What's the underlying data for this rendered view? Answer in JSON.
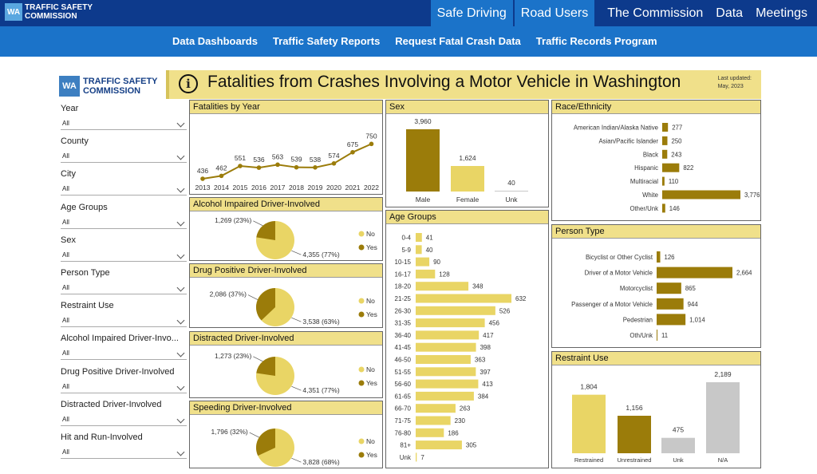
{
  "site": {
    "logo_mark": "WA",
    "logo_line1": "TRAFFIC SAFETY",
    "logo_line2": "COMMISSION",
    "nav": [
      "Safe Driving",
      "Road Users",
      "The Commission",
      "Data",
      "Meetings"
    ],
    "subnav": [
      "Data Dashboards",
      "Traffic Safety Reports",
      "Request Fatal Crash Data",
      "Traffic Records Program"
    ]
  },
  "dashboard": {
    "title": "Fatalities from Crashes Involving a Motor Vehicle in Washington",
    "updated_line1": "Last updated:",
    "updated_line2": "May, 2023",
    "info_glyph": "i"
  },
  "filters": [
    {
      "label": "Year",
      "value": "All"
    },
    {
      "label": "County",
      "value": "All"
    },
    {
      "label": "City",
      "value": "All"
    },
    {
      "label": "Age Groups",
      "value": "All"
    },
    {
      "label": "Sex",
      "value": "All"
    },
    {
      "label": "Person Type",
      "value": "All"
    },
    {
      "label": "Restraint Use",
      "value": "All"
    },
    {
      "label": "Alcohol Impaired Driver-Invo...",
      "value": "All"
    },
    {
      "label": "Drug Positive Driver-Involved",
      "value": "All"
    },
    {
      "label": "Distracted Driver-Involved",
      "value": "All"
    },
    {
      "label": "Hit and Run-Involved",
      "value": "All"
    }
  ],
  "colors": {
    "dark": "#9b7c0a",
    "light": "#e9d565",
    "grey": "#c8c8c8",
    "header": "#f0e08a",
    "nav_dark": "#0d3a8c",
    "nav_light": "#1b73c9"
  },
  "chart_data": [
    {
      "id": "by_year",
      "type": "line",
      "title": "Fatalities by Year",
      "x": [
        "2013",
        "2014",
        "2015",
        "2016",
        "2017",
        "2018",
        "2019",
        "2020",
        "2021",
        "2022"
      ],
      "values": [
        436,
        462,
        551,
        536,
        563,
        539,
        538,
        574,
        675,
        750
      ]
    },
    {
      "id": "alcohol",
      "type": "pie",
      "title": "Alcohol Impaired Driver-Involved",
      "slices": [
        {
          "name": "Yes",
          "value": 1269,
          "label": "1,269 (23%)"
        },
        {
          "name": "No",
          "value": 4355,
          "label": "4,355 (77%)"
        }
      ],
      "legend": [
        "No",
        "Yes"
      ]
    },
    {
      "id": "drug",
      "type": "pie",
      "title": "Drug Positive Driver-Involved",
      "slices": [
        {
          "name": "Yes",
          "value": 2086,
          "label": "2,086 (37%)"
        },
        {
          "name": "No",
          "value": 3538,
          "label": "3,538 (63%)"
        }
      ],
      "legend": [
        "No",
        "Yes"
      ]
    },
    {
      "id": "distracted",
      "type": "pie",
      "title": "Distracted Driver-Involved",
      "slices": [
        {
          "name": "Yes",
          "value": 1273,
          "label": "1,273 (23%)"
        },
        {
          "name": "No",
          "value": 4351,
          "label": "4,351 (77%)"
        }
      ],
      "legend": [
        "No",
        "Yes"
      ]
    },
    {
      "id": "speeding",
      "type": "pie",
      "title": "Speeding Driver-Involved",
      "slices": [
        {
          "name": "Yes",
          "value": 1796,
          "label": "1,796 (32%)"
        },
        {
          "name": "No",
          "value": 3828,
          "label": "3,828 (68%)"
        }
      ],
      "legend": [
        "No",
        "Yes"
      ]
    },
    {
      "id": "sex",
      "type": "bar",
      "title": "Sex",
      "categories": [
        "Male",
        "Female",
        "Unk"
      ],
      "values": [
        3960,
        1624,
        40
      ],
      "labels": [
        "3,960",
        "1,624",
        "40"
      ]
    },
    {
      "id": "age",
      "type": "bar",
      "orientation": "horizontal",
      "title": "Age Groups",
      "categories": [
        "0-4",
        "5-9",
        "10-15",
        "16-17",
        "18-20",
        "21-25",
        "26-30",
        "31-35",
        "36-40",
        "41-45",
        "46-50",
        "51-55",
        "56-60",
        "61-65",
        "66-70",
        "71-75",
        "76-80",
        "81+",
        "Unk"
      ],
      "values": [
        41,
        40,
        90,
        128,
        348,
        632,
        526,
        456,
        417,
        398,
        363,
        397,
        413,
        384,
        263,
        230,
        186,
        305,
        7
      ]
    },
    {
      "id": "race",
      "type": "bar",
      "orientation": "horizontal",
      "title": "Race/Ethnicity",
      "categories": [
        "American Indian/Alaska Native",
        "Asian/Pacific Islander",
        "Black",
        "Hispanic",
        "Multiracial",
        "White",
        "Other/Unk"
      ],
      "values": [
        277,
        250,
        243,
        822,
        110,
        3776,
        146
      ],
      "labels": [
        "277",
        "250",
        "243",
        "822",
        "110",
        "3,776",
        "146"
      ]
    },
    {
      "id": "person",
      "type": "bar",
      "orientation": "horizontal",
      "title": "Person Type",
      "categories": [
        "Bicyclist or Other Cyclist",
        "Driver of a Motor Vehicle",
        "Motorcyclist",
        "Passenger of a Motor Vehicle",
        "Pedestrian",
        "Oth/Unk"
      ],
      "values": [
        126,
        2664,
        865,
        944,
        1014,
        11
      ],
      "labels": [
        "126",
        "2,664",
        "865",
        "944",
        "1,014",
        "11"
      ]
    },
    {
      "id": "restraint",
      "type": "bar",
      "title": "Restraint Use",
      "categories": [
        "Restrained",
        "Unrestrained",
        "Unk",
        "N/A"
      ],
      "values": [
        1804,
        1156,
        475,
        2189
      ],
      "labels": [
        "1,804",
        "1,156",
        "475",
        "2,189"
      ]
    }
  ]
}
